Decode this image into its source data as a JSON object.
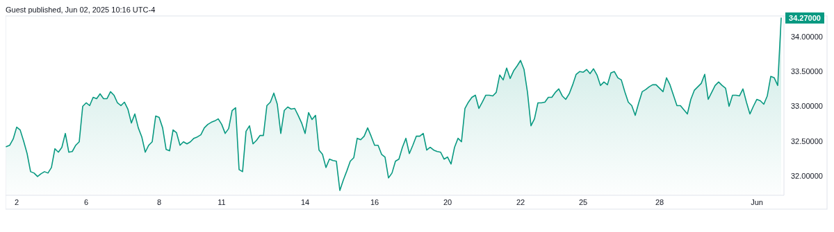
{
  "chart_data": {
    "type": "area",
    "title": "Guest published, Jun 02, 2025 10:16 UTC-4",
    "categories": [
      null,
      null,
      null,
      "2",
      null,
      null,
      null,
      null,
      null,
      null,
      null,
      null,
      null,
      null,
      null,
      null,
      null,
      null,
      null,
      null,
      null,
      null,
      null,
      "6",
      null,
      null,
      null,
      null,
      null,
      null,
      null,
      null,
      null,
      null,
      null,
      null,
      null,
      null,
      null,
      null,
      null,
      null,
      null,
      null,
      "8",
      null,
      null,
      null,
      null,
      null,
      null,
      null,
      null,
      null,
      null,
      null,
      null,
      null,
      null,
      null,
      null,
      null,
      "11",
      null,
      null,
      null,
      null,
      null,
      null,
      null,
      null,
      null,
      null,
      null,
      null,
      null,
      null,
      null,
      null,
      null,
      null,
      null,
      null,
      null,
      null,
      null,
      "14",
      null,
      null,
      null,
      null,
      null,
      null,
      null,
      null,
      null,
      null,
      null,
      null,
      null,
      null,
      null,
      null,
      null,
      null,
      null,
      "16",
      null,
      null,
      null,
      null,
      null,
      null,
      null,
      null,
      null,
      null,
      null,
      null,
      null,
      null,
      null,
      null,
      null,
      null,
      null,
      null,
      "20",
      null,
      null,
      null,
      null,
      null,
      null,
      null,
      null,
      null,
      null,
      null,
      null,
      null,
      null,
      null,
      null,
      null,
      null,
      null,
      null,
      "22",
      null,
      null,
      null,
      null,
      null,
      null,
      null,
      null,
      null,
      null,
      null,
      null,
      null,
      null,
      null,
      null,
      null,
      "25",
      null,
      null,
      null,
      null,
      null,
      null,
      null,
      null,
      null,
      null,
      null,
      null,
      null,
      null,
      null,
      null,
      null,
      null,
      null,
      null,
      null,
      "28",
      null,
      null,
      null,
      null,
      null,
      null,
      null,
      null,
      null,
      null,
      null,
      null,
      null,
      null,
      null,
      null,
      null,
      null,
      null,
      null,
      null,
      null,
      null,
      null,
      null,
      null,
      null,
      "Jun",
      null,
      null,
      null,
      null,
      null,
      null,
      null
    ],
    "series": [
      {
        "color": "#089981",
        "values": [
          32.42,
          32.44,
          32.53,
          32.7,
          32.66,
          32.5,
          32.32,
          32.06,
          32.04,
          31.99,
          32.03,
          32.06,
          32.04,
          32.12,
          32.39,
          32.34,
          32.41,
          32.61,
          32.34,
          32.35,
          32.44,
          32.49,
          33.0,
          33.05,
          33.01,
          33.13,
          33.11,
          33.18,
          33.11,
          33.11,
          33.21,
          33.16,
          33.05,
          33.01,
          33.06,
          32.96,
          32.76,
          32.89,
          32.69,
          32.56,
          32.34,
          32.44,
          32.49,
          32.86,
          32.84,
          32.69,
          32.38,
          32.36,
          32.66,
          32.62,
          32.44,
          32.49,
          32.46,
          32.49,
          32.54,
          32.56,
          32.59,
          32.69,
          32.74,
          32.77,
          32.79,
          32.82,
          32.74,
          32.61,
          32.68,
          32.94,
          32.98,
          32.09,
          32.06,
          32.64,
          32.72,
          32.46,
          32.51,
          32.58,
          32.58,
          33.01,
          33.06,
          33.19,
          33.03,
          32.61,
          32.94,
          32.99,
          32.96,
          32.97,
          32.87,
          32.76,
          32.61,
          32.91,
          32.81,
          32.87,
          32.37,
          32.31,
          32.12,
          32.24,
          32.22,
          32.21,
          31.79,
          31.94,
          32.07,
          32.21,
          32.26,
          32.54,
          32.52,
          32.57,
          32.69,
          32.57,
          32.44,
          32.44,
          32.31,
          32.27,
          31.97,
          32.04,
          32.21,
          32.24,
          32.41,
          32.54,
          32.32,
          32.44,
          32.57,
          32.57,
          32.61,
          32.37,
          32.41,
          32.37,
          32.35,
          32.34,
          32.24,
          32.27,
          32.17,
          32.41,
          32.54,
          32.49,
          32.97,
          33.06,
          33.13,
          33.16,
          32.97,
          33.06,
          33.16,
          33.16,
          33.15,
          33.2,
          33.45,
          33.38,
          33.55,
          33.4,
          33.51,
          33.58,
          33.66,
          33.53,
          33.2,
          32.72,
          32.82,
          33.05,
          33.05,
          33.06,
          33.13,
          33.13,
          33.2,
          33.25,
          33.15,
          33.1,
          33.18,
          33.31,
          33.46,
          33.5,
          33.49,
          33.53,
          33.47,
          33.54,
          33.45,
          33.3,
          33.35,
          33.31,
          33.48,
          33.5,
          33.41,
          33.38,
          33.21,
          33.06,
          33.01,
          32.87,
          33.05,
          33.21,
          33.24,
          33.28,
          33.31,
          33.31,
          33.26,
          33.21,
          33.41,
          33.31,
          33.16,
          33.01,
          33.01,
          32.95,
          32.89,
          33.1,
          33.23,
          33.28,
          33.33,
          33.46,
          33.1,
          33.2,
          33.3,
          33.35,
          33.3,
          33.26,
          33.0,
          33.16,
          33.16,
          33.15,
          33.25,
          33.06,
          32.89,
          33.0,
          33.1,
          33.08,
          33.03,
          33.15,
          33.43,
          33.41,
          33.3,
          34.27
        ]
      }
    ],
    "ylim": [
      31.72,
      34.3
    ],
    "yticks": [
      {
        "value": 32,
        "label": "32.00000"
      },
      {
        "value": 32.5,
        "label": "32.50000"
      },
      {
        "value": 33,
        "label": "33.00000"
      },
      {
        "value": 33.5,
        "label": "33.50000"
      },
      {
        "value": 34,
        "label": "34.00000"
      }
    ],
    "annotations": [
      "34.27000"
    ],
    "grid": false
  }
}
